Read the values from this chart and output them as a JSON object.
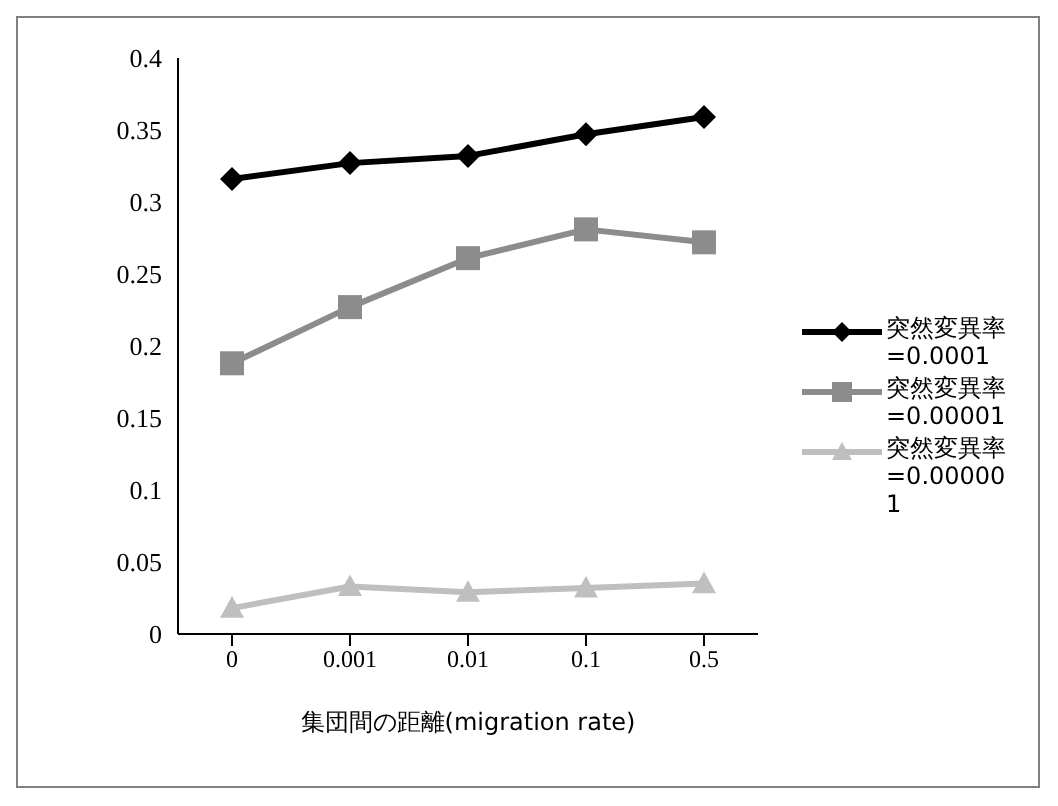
{
  "chart_data": {
    "type": "line",
    "xlabel": "集団間の距離(migration rate)",
    "categories": [
      "0",
      "0.001",
      "0.01",
      "0.1",
      "0.5"
    ],
    "series": [
      {
        "name": "突然変異率=0.0001",
        "color": "#000000",
        "marker": "diamond",
        "values": [
          0.316,
          0.327,
          0.332,
          0.347,
          0.359
        ]
      },
      {
        "name": "突然変異率=0.00001",
        "color": "#8c8c8c",
        "marker": "square",
        "values": [
          0.188,
          0.227,
          0.261,
          0.281,
          0.272
        ]
      },
      {
        "name": "突然変異率=0.000001",
        "color": "#bfbfbf",
        "marker": "triangle",
        "values": [
          0.018,
          0.033,
          0.029,
          0.032,
          0.035
        ]
      }
    ],
    "ylim": [
      0,
      0.4
    ],
    "yticks": [
      0,
      0.05,
      0.1,
      0.15,
      0.2,
      0.25,
      0.3,
      0.35,
      0.4
    ],
    "grid": false,
    "legend": "right",
    "line_style": "solid"
  }
}
